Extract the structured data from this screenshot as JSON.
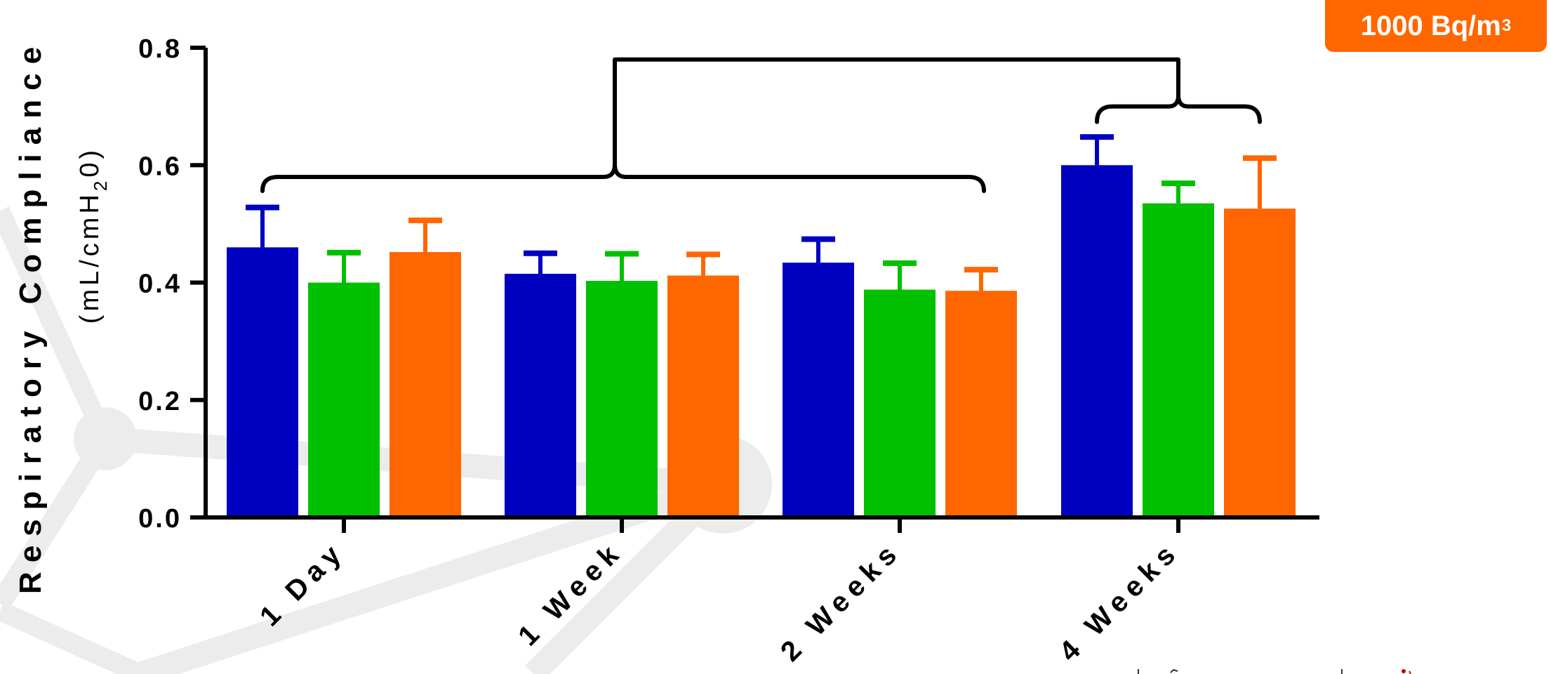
{
  "badge": {
    "label": "1000 Bq/m",
    "superscript": "3",
    "color": "#ff6600"
  },
  "chart_data": {
    "type": "bar",
    "ylabel": "Respiratory Compliance",
    "ylabel_units": {
      "before": "(mL/cmH",
      "subscript": "2",
      "after": "0)"
    },
    "ylim": [
      0,
      0.8
    ],
    "yticks": [
      "0.0",
      "0.2",
      "0.4",
      "0.6",
      "0.8"
    ],
    "categories": [
      "1 Day",
      "1 Week",
      "2 Weeks",
      "4 Weeks"
    ],
    "series": [
      {
        "color": "#0000c0",
        "values": [
          0.46,
          0.415,
          0.434,
          0.6
        ],
        "errors": [
          0.068,
          0.035,
          0.04,
          0.048
        ]
      },
      {
        "color": "#00c000",
        "values": [
          0.4,
          0.403,
          0.388,
          0.535
        ],
        "errors": [
          0.051,
          0.046,
          0.045,
          0.034
        ]
      },
      {
        "color": "#ff6600",
        "values": [
          0.452,
          0.412,
          0.386,
          0.526
        ],
        "errors": [
          0.054,
          0.036,
          0.036,
          0.086
        ]
      }
    ],
    "grid": false,
    "legend": "none",
    "brackets": [
      {
        "from_category": 0,
        "to_category": 2,
        "level": 0.58
      },
      {
        "from_category": 3,
        "to_category": 3,
        "level": 0.7
      },
      {
        "connects": "top",
        "level": 0.78
      }
    ]
  }
}
